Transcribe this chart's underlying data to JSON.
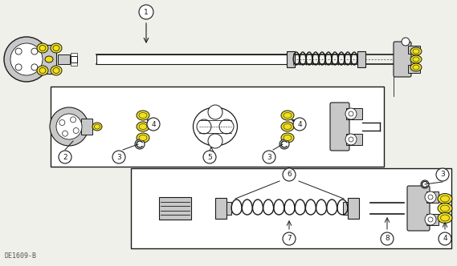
{
  "label_code": "DE1609-B",
  "bg_color": "#f0f0eb",
  "line_color": "#1a1a1a",
  "yellow_color": "#f0e020",
  "gray_color": "#999999",
  "light_gray": "#c8c8c8",
  "white_color": "#ffffff",
  "figsize": [
    5.69,
    3.32
  ],
  "dpi": 100
}
